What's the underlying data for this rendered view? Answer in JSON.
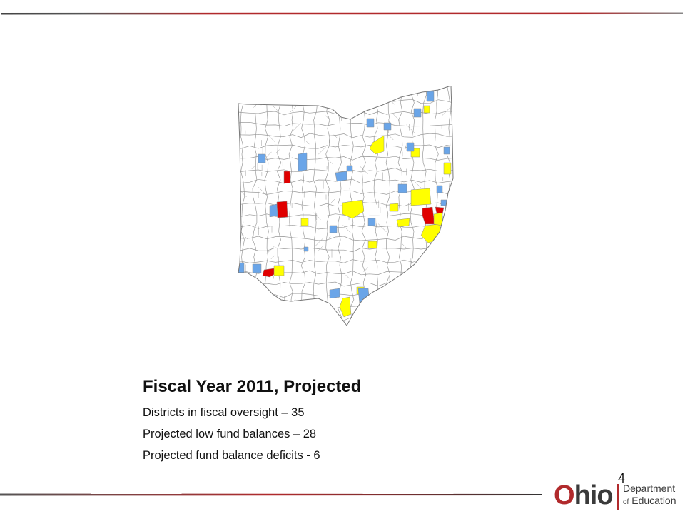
{
  "colors": {
    "oversight": "#6aa5e8",
    "low_fund": "#ffff00",
    "deficit": "#e00000",
    "boundary": "#8c8c8c",
    "brand_red": "#b12a2c"
  },
  "map": {
    "subject": "Ohio school districts",
    "legend_categories": [
      {
        "label": "Districts in fiscal oversight",
        "color": "#6aa5e8"
      },
      {
        "label": "Projected low fund balances",
        "color": "#ffff00"
      },
      {
        "label": "Projected fund balance deficits",
        "color": "#e00000"
      }
    ]
  },
  "caption": {
    "title": "Fiscal Year 2011, Projected",
    "line1": "Districts in fiscal oversight – 35",
    "line2": "Projected low fund balances – 28",
    "line3": "Projected fund balance deficits - 6"
  },
  "slide_number": "4",
  "logo": {
    "ohio_o": "O",
    "ohio_rest": "hio",
    "dept_line1": "Department",
    "dept_of": "of",
    "dept_line2": "Education"
  }
}
